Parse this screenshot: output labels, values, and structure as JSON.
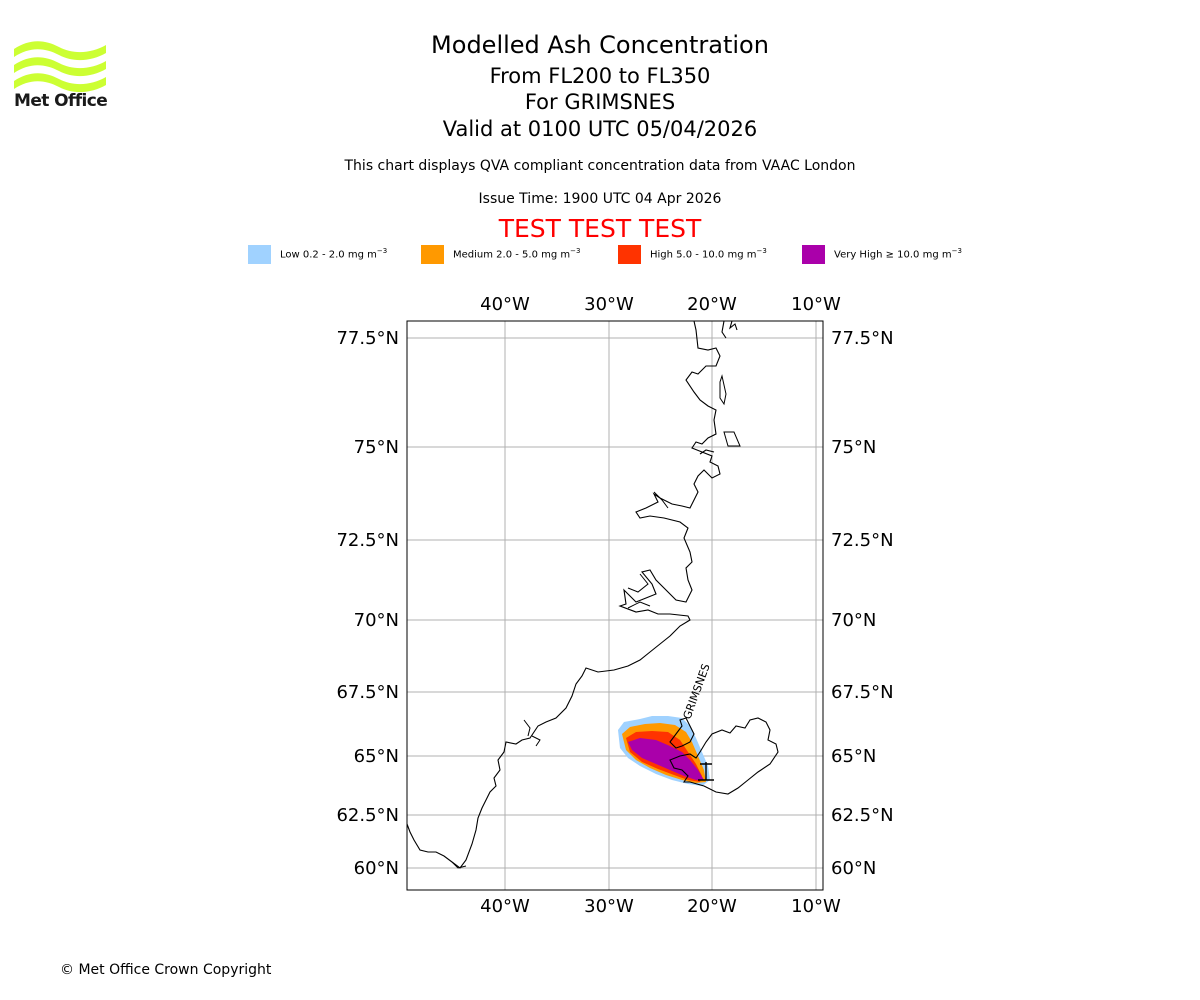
{
  "header": {
    "logo_text": "Met Office",
    "title": "Modelled Ash Concentration",
    "level_range": "From FL200 to FL350",
    "volcano": "For GRIMSNES",
    "valid_time": "Valid at 0100 UTC 05/04/2026",
    "description": "This chart displays QVA compliant concentration data from VAAC London",
    "issue_time": "Issue Time: 1900 UTC 04 Apr 2026",
    "test_banner": "TEST TEST TEST"
  },
  "colors": {
    "logo": "#ccff33",
    "low": "#a0d2ff",
    "medium": "#ff9900",
    "high": "#ff3300",
    "very_high": "#aa00aa",
    "test_banner": "#ff0000",
    "grid": "#b0b0b0"
  },
  "legend": [
    {
      "label": "Low 0.2 - 2.0 mg m",
      "sup": "−3",
      "color": "#a0d2ff"
    },
    {
      "label": "Medium 2.0 - 5.0 mg m",
      "sup": "−3",
      "color": "#ff9900"
    },
    {
      "label": "High 5.0 - 10.0 mg m",
      "sup": "−3",
      "color": "#ff3300"
    },
    {
      "label": "Very High  ≥  10.0 mg m",
      "sup": "−3",
      "color": "#aa00aa"
    }
  ],
  "map": {
    "lon_ticks": [
      "40°W",
      "30°W",
      "20°W",
      "10°W"
    ],
    "lat_ticks": [
      "77.5°N",
      "75°N",
      "72.5°N",
      "70°N",
      "67.5°N",
      "65°N",
      "62.5°N",
      "60°N"
    ],
    "volcano_name": "GRIMSNES"
  },
  "footer": {
    "copyright": "© Met Office Crown Copyright"
  }
}
